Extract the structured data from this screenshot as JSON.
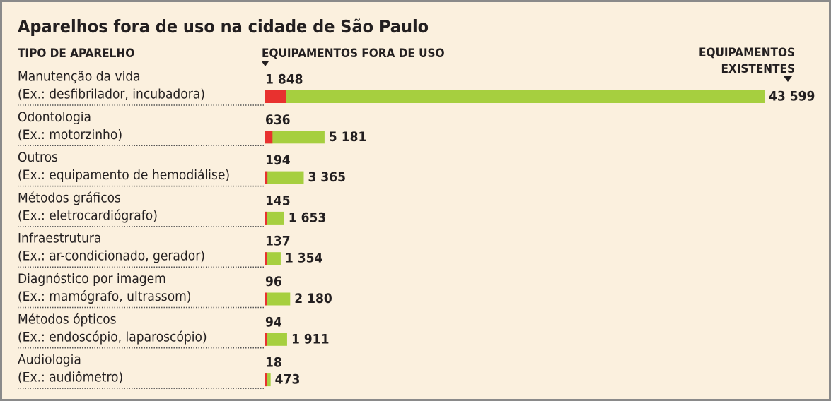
{
  "chart_data": {
    "type": "bar",
    "title": "Aparelhos fora de uso na cidade de São Paulo",
    "category_label": "TIPO DE APARELHO",
    "categories": [
      "Manutenção da vida",
      "Odontologia",
      "Outros",
      "Métodos gráficos",
      "Infraestrutura",
      "Diagnóstico por imagem",
      "Métodos ópticos",
      "Audiologia"
    ],
    "examples": [
      "(Ex.: desfibrilador, incubadora)",
      "(Ex.: motorzinho)",
      "(Ex.: equipamento de hemodiálise)",
      "(Ex.: eletrocardiógrafo)",
      "(Ex.: ar-condicionado, gerador)",
      "(Ex.: mamógrafo, ultrassom)",
      "(Ex.: endoscópio, laparoscópio)",
      "(Ex.: audiômetro)"
    ],
    "series": [
      {
        "name": "EQUIPAMENTOS FORA DE USO",
        "color": "#e8312f",
        "values": [
          1848,
          636,
          194,
          145,
          137,
          96,
          94,
          18
        ],
        "value_labels": [
          "1 848",
          "636",
          "194",
          "145",
          "137",
          "96",
          "94",
          "18"
        ]
      },
      {
        "name": "EQUIPAMENTOS EXISTENTES",
        "color": "#a6cf3f",
        "values": [
          43599,
          5181,
          3365,
          1653,
          1354,
          2180,
          1911,
          473
        ],
        "value_labels": [
          "43 599",
          "5 181",
          "3 365",
          "1 653",
          "1 354",
          "2 180",
          "1 911",
          "473"
        ]
      }
    ]
  }
}
